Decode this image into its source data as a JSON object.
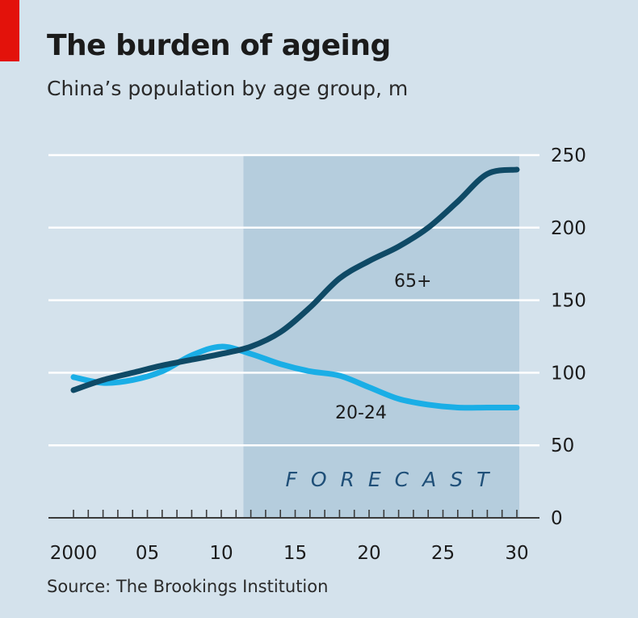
{
  "header": {
    "title": "The burden of ageing",
    "subtitle": "China’s population by age group, m"
  },
  "footer": {
    "source": "Source: The Brookings Institution"
  },
  "colors": {
    "background": "#d4e2ec",
    "forecast_band": "#b5cddd",
    "series_65": "#0f4a66",
    "series_20_24": "#1aaee6",
    "red_tag": "#e3120b"
  },
  "chart_data": {
    "type": "line",
    "title": "The burden of ageing",
    "subtitle": "China’s population by age group, m",
    "xlabel": "",
    "ylabel": "",
    "xlim": [
      2000,
      2030
    ],
    "ylim": [
      0,
      250
    ],
    "y_ticks": [
      0,
      50,
      100,
      150,
      200,
      250
    ],
    "y_tick_labels": [
      "0",
      "50",
      "100",
      "150",
      "200",
      "250"
    ],
    "x_ticks": [
      2000,
      2005,
      2010,
      2015,
      2020,
      2025,
      2030
    ],
    "x_tick_labels": [
      "2000",
      "05",
      "10",
      "15",
      "20",
      "25",
      "30"
    ],
    "grid": true,
    "forecast_range": [
      2011.5,
      2030
    ],
    "forecast_label": "FORECAST",
    "series": [
      {
        "name": "65+",
        "color": "#0f4a66",
        "x": [
          2000,
          2002,
          2004,
          2006,
          2008,
          2010,
          2012,
          2014,
          2016,
          2018,
          2020,
          2022,
          2024,
          2026,
          2028,
          2030
        ],
        "values": [
          88,
          95,
          100,
          105,
          109,
          113,
          118,
          128,
          145,
          165,
          177,
          187,
          200,
          218,
          237,
          257
        ]
      },
      {
        "name": "20-24",
        "color": "#1aaee6",
        "x": [
          2000,
          2002,
          2004,
          2006,
          2008,
          2010,
          2012,
          2014,
          2016,
          2018,
          2020,
          2022,
          2024,
          2026,
          2028,
          2030
        ],
        "values": [
          97,
          93,
          95,
          101,
          112,
          118,
          113,
          106,
          101,
          98,
          90,
          82,
          78,
          76,
          76,
          76
        ]
      }
    ]
  }
}
